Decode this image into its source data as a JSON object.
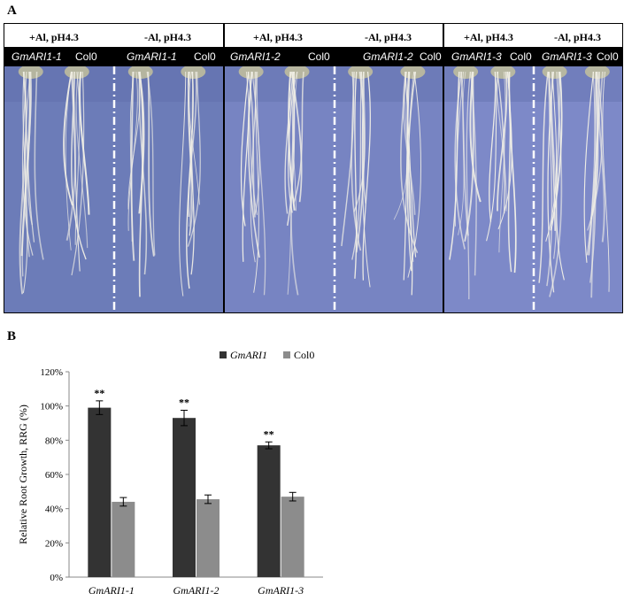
{
  "panel_a": {
    "letter": "A",
    "panels": [
      {
        "conditions": [
          "+Al, pH4.3",
          "-Al, pH4.3"
        ],
        "genotypes": [
          "GmARI1-1",
          "Col0",
          "GmARI1-1",
          "Col0"
        ],
        "plate_color": "#6c7cb8"
      },
      {
        "conditions": [
          "+Al, pH4.3",
          "-Al, pH4.3"
        ],
        "genotypes": [
          "GmARI1-2",
          "Col0",
          "GmARI1-2",
          "Col0"
        ],
        "plate_color": "#7784c2"
      },
      {
        "conditions": [
          "+Al, pH4.3",
          "-Al, pH4.3"
        ],
        "genotypes": [
          "GmARI1-3",
          "Col0",
          "GmARI1-3",
          "Col0"
        ],
        "plate_color": "#7d89c8"
      }
    ]
  },
  "panel_b": {
    "letter": "B"
  },
  "chart_data": {
    "type": "bar",
    "title": "",
    "xlabel": "",
    "ylabel": "Relative Root Growth, RRG (%)",
    "categories": [
      "GmARI1-1",
      "GmARI1-2",
      "GmARI1-3"
    ],
    "series": [
      {
        "name": "GmARI1",
        "values": [
          99,
          93,
          77
        ],
        "errors": [
          4,
          4.5,
          2
        ],
        "color": "#333333"
      },
      {
        "name": "Col0",
        "values": [
          44,
          45.5,
          47
        ],
        "errors": [
          2.5,
          2.5,
          2.5
        ],
        "color": "#8c8c8c"
      }
    ],
    "significance": [
      "**",
      "**",
      "**"
    ],
    "yticks": [
      "0%",
      "20%",
      "40%",
      "60%",
      "80%",
      "100%",
      "120%"
    ],
    "ylim": [
      0,
      120
    ],
    "legend_position": "top",
    "grid": false
  }
}
